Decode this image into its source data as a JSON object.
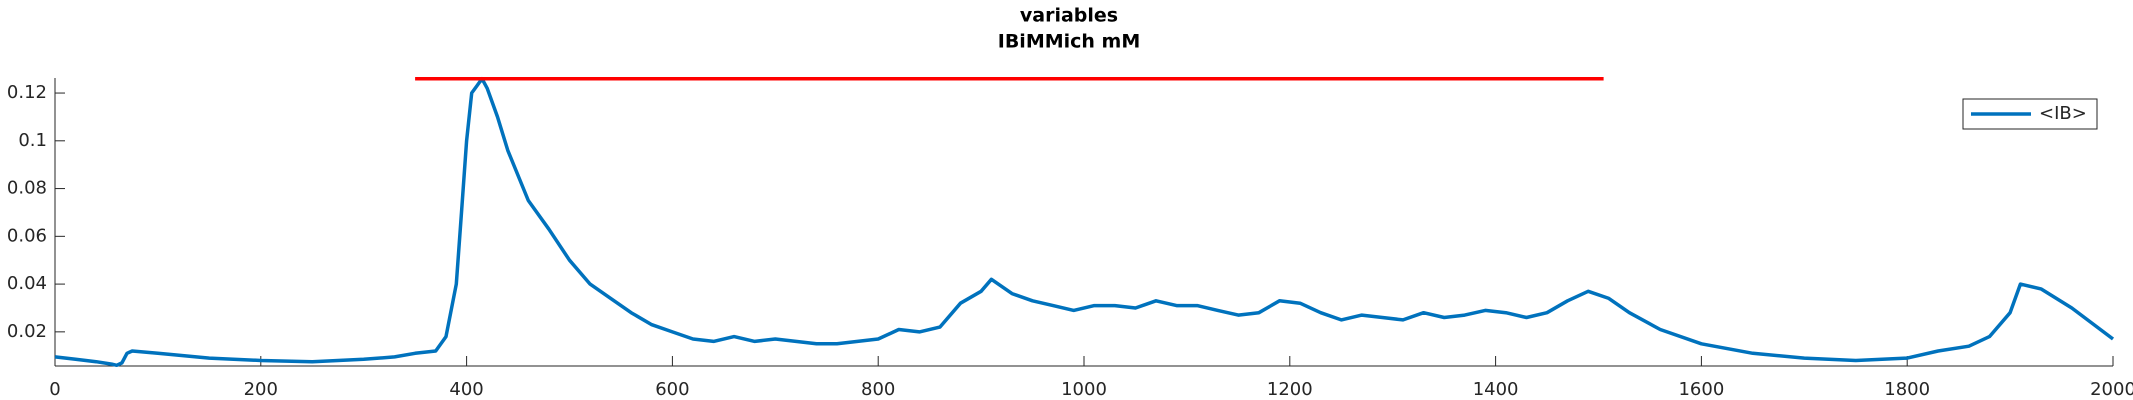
{
  "chart_data": {
    "type": "line",
    "title": [
      "variables",
      "IBiMMich mM"
    ],
    "xlim": [
      0,
      2000
    ],
    "xticks": [
      0,
      200,
      400,
      600,
      800,
      1000,
      1200,
      1400,
      1600,
      1800,
      2000
    ],
    "ylim": [
      0.0057,
      0.1263
    ],
    "yticks": [
      0.02,
      0.04,
      0.06,
      0.08,
      0.1,
      0.12
    ],
    "legend": "northeast",
    "series": [
      {
        "name": "<IB>",
        "color": "#0072bd",
        "x": [
          0,
          20,
          40,
          55,
          60,
          65,
          70,
          75,
          100,
          150,
          200,
          250,
          300,
          330,
          350,
          370,
          380,
          390,
          395,
          400,
          405,
          410,
          415,
          420,
          430,
          440,
          460,
          480,
          500,
          520,
          540,
          560,
          580,
          600,
          620,
          640,
          660,
          680,
          700,
          720,
          740,
          760,
          780,
          800,
          820,
          840,
          860,
          880,
          900,
          910,
          930,
          950,
          970,
          990,
          1010,
          1030,
          1050,
          1070,
          1090,
          1110,
          1130,
          1150,
          1170,
          1190,
          1210,
          1230,
          1250,
          1270,
          1290,
          1310,
          1330,
          1350,
          1370,
          1390,
          1410,
          1430,
          1450,
          1470,
          1490,
          1510,
          1530,
          1560,
          1600,
          1650,
          1700,
          1750,
          1800,
          1830,
          1860,
          1880,
          1900,
          1910,
          1930,
          1960,
          2000
        ],
        "values": [
          0.0095,
          0.0085,
          0.0075,
          0.0065,
          0.006,
          0.007,
          0.011,
          0.012,
          0.011,
          0.009,
          0.008,
          0.0075,
          0.0085,
          0.0095,
          0.011,
          0.012,
          0.018,
          0.04,
          0.07,
          0.1,
          0.12,
          0.123,
          0.126,
          0.122,
          0.11,
          0.096,
          0.075,
          0.063,
          0.05,
          0.04,
          0.034,
          0.028,
          0.023,
          0.02,
          0.017,
          0.016,
          0.018,
          0.016,
          0.017,
          0.016,
          0.015,
          0.015,
          0.016,
          0.017,
          0.021,
          0.02,
          0.022,
          0.032,
          0.037,
          0.042,
          0.036,
          0.033,
          0.031,
          0.029,
          0.031,
          0.031,
          0.03,
          0.033,
          0.031,
          0.031,
          0.029,
          0.027,
          0.028,
          0.033,
          0.032,
          0.028,
          0.025,
          0.027,
          0.026,
          0.025,
          0.028,
          0.026,
          0.027,
          0.029,
          0.028,
          0.026,
          0.028,
          0.033,
          0.037,
          0.034,
          0.028,
          0.021,
          0.015,
          0.011,
          0.009,
          0.008,
          0.009,
          0.012,
          0.014,
          0.018,
          0.028,
          0.04,
          0.038,
          0.03,
          0.017
        ]
      },
      {
        "color": "#ff0000",
        "x": [
          350,
          1505
        ],
        "values": [
          0.126,
          0.126
        ]
      }
    ]
  }
}
